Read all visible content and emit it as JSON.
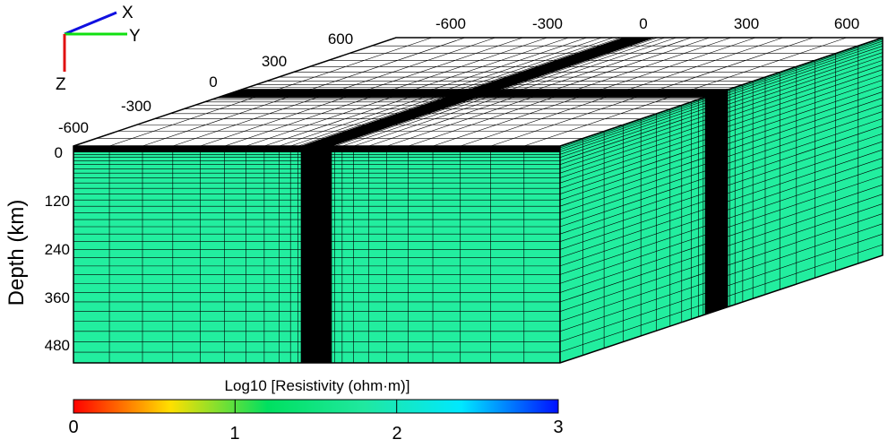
{
  "triad": {
    "x_label": "X",
    "y_label": "Y",
    "z_label": "Z"
  },
  "top_x_ticks": [
    "-600",
    "-300",
    "0",
    "300",
    "600"
  ],
  "top_y_ticks": [
    "-600",
    "-300",
    "0",
    "300",
    "600"
  ],
  "depth_axis": {
    "label": "Depth (km)",
    "ticks": [
      "0",
      "120",
      "240",
      "360",
      "480"
    ]
  },
  "colorbar": {
    "title": "Log10 [Resistivity (ohm·m)]",
    "ticks": [
      "0",
      "1",
      "2",
      "3"
    ],
    "range": [
      0,
      3
    ],
    "stops": [
      "#ff0000",
      "#ffe000",
      "#00e060",
      "#20e8a0",
      "#00e8ff",
      "#0010ff"
    ]
  },
  "colors": {
    "model_fill": "#22ee9f",
    "grid": "#000000"
  }
}
